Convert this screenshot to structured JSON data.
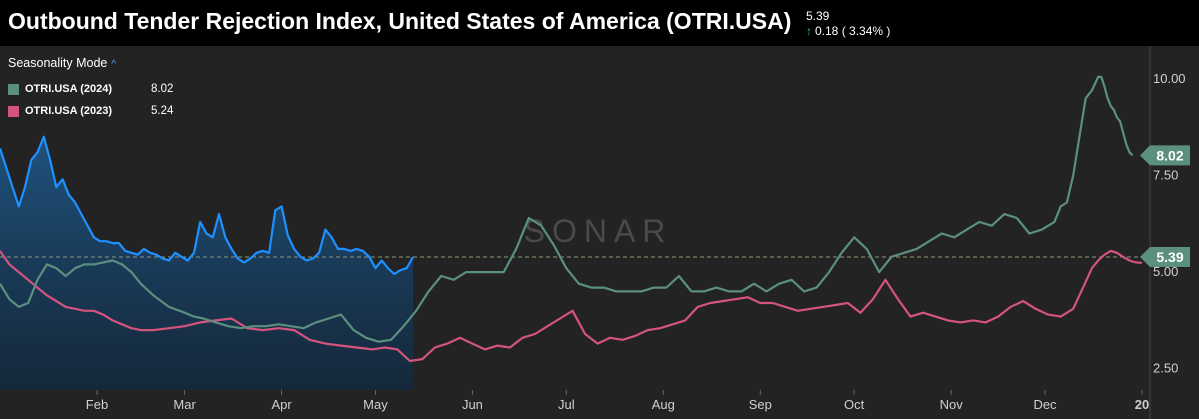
{
  "header": {
    "title": "Outbound Tender Rejection Index, United States of America (OTRI.USA)",
    "current_value": "5.39",
    "change_text": "0.18 ( 3.34% )",
    "change_direction": "up"
  },
  "legend": {
    "mode_label": "Seasonality Mode",
    "items": [
      {
        "name": "OTRI.USA (2024)",
        "value": "8.02",
        "color": "#5b8f7e"
      },
      {
        "name": "OTRI.USA (2023)",
        "value": "5.24",
        "color": "#d4547e"
      }
    ]
  },
  "watermark": "SONAR",
  "chart_data": {
    "type": "line",
    "title": "Outbound Tender Rejection Index, United States of America (OTRI.USA)",
    "x_ticks": [
      "Feb",
      "Mar",
      "Apr",
      "May",
      "Jun",
      "Jul",
      "Aug",
      "Sep",
      "Oct",
      "Nov",
      "Dec",
      "20"
    ],
    "y_ticks": [
      "10.00",
      "7.50",
      "5.00",
      "2.50"
    ],
    "ylim": [
      1.95,
      10.85
    ],
    "xlim": [
      1,
      366
    ],
    "grid": false,
    "reference_line": 5.39,
    "series": [
      {
        "name": "OTRI.USA (2024)",
        "color": "#5b8f7e",
        "end_label": "8.02",
        "x": [
          1,
          4,
          7,
          10,
          13,
          16,
          19,
          22,
          25,
          28,
          31,
          34,
          37,
          40,
          43,
          46,
          50,
          55,
          60,
          63,
          66,
          70,
          74,
          78,
          82,
          86,
          90,
          94,
          98,
          102,
          106,
          110,
          114,
          118,
          122,
          126,
          130,
          134,
          138,
          142,
          146,
          150,
          154,
          158,
          162,
          166,
          170,
          174,
          178,
          182,
          186,
          190,
          194,
          198,
          202,
          206,
          210,
          214,
          218,
          222,
          226,
          230,
          234,
          238,
          242,
          246,
          250,
          254,
          258,
          262,
          266,
          270,
          274,
          278,
          282,
          286,
          290,
          294,
          298,
          302,
          306,
          310,
          314,
          318,
          322,
          326,
          330,
          334,
          338,
          340,
          342,
          344,
          346,
          348,
          350,
          352,
          353,
          354,
          355,
          356,
          357,
          358,
          359,
          360,
          361,
          362,
          363
        ],
        "y": [
          4.7,
          4.3,
          4.1,
          4.2,
          4.8,
          5.2,
          5.1,
          4.9,
          5.1,
          5.2,
          5.2,
          5.25,
          5.3,
          5.2,
          5.0,
          4.7,
          4.4,
          4.1,
          3.95,
          3.85,
          3.8,
          3.7,
          3.6,
          3.55,
          3.6,
          3.6,
          3.65,
          3.6,
          3.55,
          3.7,
          3.8,
          3.9,
          3.5,
          3.3,
          3.2,
          3.25,
          3.6,
          4.0,
          4.5,
          4.9,
          4.8,
          5.0,
          5.0,
          5.0,
          5.0,
          5.6,
          6.4,
          6.2,
          5.7,
          5.1,
          4.7,
          4.6,
          4.6,
          4.5,
          4.5,
          4.5,
          4.6,
          4.6,
          4.9,
          4.5,
          4.5,
          4.6,
          4.5,
          4.5,
          4.7,
          4.5,
          4.7,
          4.8,
          4.5,
          4.6,
          5.0,
          5.5,
          5.9,
          5.6,
          5.0,
          5.4,
          5.5,
          5.6,
          5.8,
          6.0,
          5.9,
          6.1,
          6.3,
          6.2,
          6.5,
          6.4,
          6.0,
          6.1,
          6.3,
          6.7,
          6.8,
          7.5,
          8.5,
          9.5,
          9.7,
          10.05,
          10.05,
          9.8,
          9.5,
          9.3,
          9.2,
          9.0,
          8.9,
          8.6,
          8.3,
          8.1,
          8.02
        ]
      },
      {
        "name": "OTRI.USA (2023)",
        "color": "#d4547e",
        "x": [
          1,
          4,
          7,
          10,
          13,
          16,
          19,
          22,
          25,
          28,
          31,
          34,
          37,
          40,
          43,
          46,
          50,
          55,
          60,
          65,
          70,
          75,
          80,
          85,
          90,
          95,
          100,
          105,
          110,
          115,
          120,
          124,
          128,
          132,
          136,
          140,
          144,
          148,
          152,
          156,
          160,
          164,
          168,
          172,
          176,
          180,
          184,
          188,
          192,
          196,
          200,
          204,
          208,
          212,
          216,
          220,
          224,
          228,
          232,
          236,
          240,
          244,
          248,
          252,
          256,
          260,
          264,
          268,
          272,
          276,
          280,
          284,
          288,
          292,
          296,
          300,
          304,
          308,
          312,
          316,
          320,
          324,
          328,
          332,
          336,
          340,
          344,
          348,
          350,
          352,
          354,
          356,
          358,
          360,
          362,
          364,
          366
        ],
        "y": [
          5.55,
          5.2,
          5.0,
          4.8,
          4.6,
          4.4,
          4.25,
          4.1,
          4.05,
          4.0,
          4.0,
          3.9,
          3.75,
          3.65,
          3.55,
          3.5,
          3.5,
          3.55,
          3.6,
          3.7,
          3.75,
          3.8,
          3.55,
          3.5,
          3.55,
          3.5,
          3.25,
          3.15,
          3.1,
          3.05,
          3.0,
          3.05,
          3.0,
          2.7,
          2.75,
          3.05,
          3.15,
          3.3,
          3.15,
          3.0,
          3.1,
          3.05,
          3.3,
          3.4,
          3.6,
          3.8,
          4.0,
          3.4,
          3.15,
          3.3,
          3.25,
          3.35,
          3.5,
          3.55,
          3.65,
          3.75,
          4.1,
          4.2,
          4.25,
          4.3,
          4.35,
          4.2,
          4.2,
          4.1,
          4.0,
          4.05,
          4.1,
          4.15,
          4.2,
          3.95,
          4.3,
          4.8,
          4.3,
          3.85,
          3.95,
          3.85,
          3.75,
          3.7,
          3.75,
          3.7,
          3.85,
          4.1,
          4.25,
          4.05,
          3.9,
          3.85,
          4.05,
          4.75,
          5.1,
          5.3,
          5.45,
          5.55,
          5.5,
          5.39,
          5.3,
          5.25,
          5.24
        ]
      },
      {
        "name": "",
        "color": "#1e90ff",
        "end_label": "5.39",
        "x": [
          1,
          3,
          5,
          7,
          9,
          11,
          13,
          15,
          17,
          19,
          21,
          23,
          25,
          27,
          29,
          31,
          33,
          35,
          37,
          39,
          41,
          43,
          45,
          47,
          49,
          51,
          53,
          55,
          57,
          59,
          61,
          63,
          65,
          67,
          69,
          71,
          73,
          75,
          77,
          79,
          81,
          83,
          85,
          87,
          89,
          91,
          93,
          95,
          97,
          99,
          101,
          103,
          105,
          107,
          109,
          111,
          113,
          115,
          117,
          119,
          121,
          123,
          125,
          127,
          129,
          131,
          133
        ],
        "y": [
          8.2,
          7.7,
          7.2,
          6.7,
          7.2,
          7.9,
          8.1,
          8.5,
          7.9,
          7.2,
          7.4,
          7.0,
          6.8,
          6.5,
          6.2,
          5.9,
          5.8,
          5.8,
          5.75,
          5.75,
          5.55,
          5.5,
          5.45,
          5.6,
          5.5,
          5.45,
          5.35,
          5.3,
          5.5,
          5.4,
          5.3,
          5.5,
          6.3,
          6.0,
          5.9,
          6.5,
          5.9,
          5.6,
          5.35,
          5.25,
          5.35,
          5.5,
          5.55,
          5.5,
          6.6,
          6.7,
          5.95,
          5.6,
          5.4,
          5.3,
          5.35,
          5.5,
          6.1,
          5.9,
          5.6,
          5.6,
          5.55,
          5.6,
          5.55,
          5.4,
          5.1,
          5.3,
          5.1,
          4.95,
          5.05,
          5.1,
          5.39
        ]
      }
    ]
  }
}
